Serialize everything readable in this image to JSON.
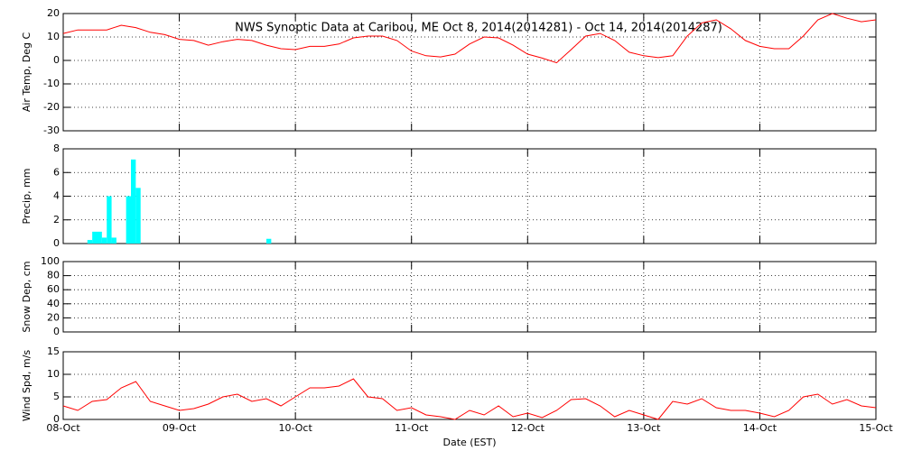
{
  "chart_data": [
    {
      "type": "line",
      "title": "NWS Synoptic Data at Caribou, ME   Oct  8, 2014(2014281) - Oct 14, 2014(2014287)",
      "y_label": "Air Temp, Deg C",
      "grid": true,
      "x": [
        0,
        3,
        6,
        9,
        12,
        15,
        18,
        21,
        24,
        27,
        30,
        33,
        36,
        39,
        42,
        45,
        48,
        51,
        54,
        57,
        60,
        63,
        66,
        69,
        72,
        75,
        78,
        81,
        84,
        87,
        90,
        93,
        96,
        99,
        102,
        105,
        108,
        111,
        114,
        117,
        120,
        123,
        126,
        129,
        132,
        135,
        138,
        141,
        144,
        147,
        150,
        153,
        156,
        159,
        162,
        165,
        168
      ],
      "series": [
        {
          "name": "Air Temp",
          "color": "#ff0000",
          "values": [
            11.5,
            13,
            13,
            13,
            15,
            14,
            12,
            11,
            9,
            8.5,
            6.5,
            8,
            9,
            8.5,
            6.5,
            5,
            4.6,
            6,
            6,
            7,
            9.6,
            10.4,
            10.4,
            8.5,
            4,
            2,
            1.5,
            2.7,
            7,
            10,
            9.6,
            6.5,
            2.7,
            1,
            -1,
            4.6,
            10.4,
            11.5,
            8.5,
            3.5,
            2,
            1.2,
            2,
            10.4,
            16,
            17.3,
            13.5,
            8.5,
            6,
            5,
            5,
            10.4,
            17.3,
            20,
            18,
            16.5,
            17.3
          ]
        }
      ],
      "xlim": [
        0,
        168
      ],
      "xticks": [
        0,
        24,
        48,
        72,
        96,
        120,
        144,
        168
      ],
      "ylim": [
        -30,
        20
      ],
      "yticks": [
        -30,
        -20,
        -10,
        0,
        10,
        20
      ]
    },
    {
      "type": "bar",
      "y_label": "Precip, mm",
      "grid": true,
      "x": [
        5,
        6,
        7,
        8,
        9,
        10,
        13,
        14,
        15,
        42
      ],
      "series": [
        {
          "name": "Precip",
          "color": "#00ffff",
          "values": [
            0.3,
            1,
            1,
            0.5,
            4,
            0.5,
            4,
            7.1,
            4.7,
            0.4
          ]
        }
      ],
      "xlim": [
        0,
        168
      ],
      "xticks": [
        0,
        24,
        48,
        72,
        96,
        120,
        144,
        168
      ],
      "ylim": [
        0,
        8
      ],
      "yticks": [
        0,
        2,
        4,
        6,
        8
      ]
    },
    {
      "type": "line",
      "y_label": "Snow Dep, cm",
      "grid": true,
      "x": [],
      "series": [
        {
          "name": "Snow Depth",
          "color": "#ff0000",
          "values": []
        }
      ],
      "xlim": [
        0,
        168
      ],
      "xticks": [
        0,
        24,
        48,
        72,
        96,
        120,
        144,
        168
      ],
      "ylim": [
        0,
        100
      ],
      "yticks": [
        0,
        20,
        40,
        60,
        80,
        100
      ]
    },
    {
      "type": "line",
      "y_label": "Wind Spd, m/s",
      "x_label": "Date (EST)",
      "grid": true,
      "x": [
        0,
        3,
        6,
        9,
        12,
        15,
        18,
        21,
        24,
        27,
        30,
        33,
        36,
        39,
        42,
        45,
        48,
        51,
        54,
        57,
        60,
        63,
        66,
        69,
        72,
        75,
        78,
        81,
        84,
        87,
        90,
        93,
        96,
        99,
        102,
        105,
        108,
        111,
        114,
        117,
        120,
        123,
        126,
        129,
        132,
        135,
        138,
        141,
        144,
        147,
        150,
        153,
        156,
        159,
        162,
        165,
        168
      ],
      "series": [
        {
          "name": "Wind Speed",
          "color": "#ff0000",
          "values": [
            3,
            2,
            4,
            4.4,
            7,
            8.4,
            4,
            3,
            2,
            2.4,
            3.4,
            5,
            5.6,
            4,
            4.6,
            3,
            5,
            7,
            7,
            7.4,
            9,
            5,
            4.6,
            2,
            2.6,
            1,
            0.6,
            0,
            2,
            1,
            3,
            0.6,
            1.4,
            0.4,
            2,
            4.4,
            4.6,
            3,
            0.6,
            2,
            1,
            0,
            4,
            3.4,
            4.6,
            2.6,
            2,
            2,
            1.4,
            0.6,
            2,
            5,
            5.6,
            3.4,
            4.4,
            3,
            2.6
          ]
        }
      ],
      "xlim": [
        0,
        168
      ],
      "xticks": [
        {
          "value": 0,
          "label": "08-Oct"
        },
        {
          "value": 24,
          "label": "09-Oct"
        },
        {
          "value": 48,
          "label": "10-Oct"
        },
        {
          "value": 72,
          "label": "11-Oct"
        },
        {
          "value": 96,
          "label": "12-Oct"
        },
        {
          "value": 120,
          "label": "13-Oct"
        },
        {
          "value": 144,
          "label": "14-Oct"
        },
        {
          "value": 168,
          "label": "15-Oct"
        }
      ],
      "ylim": [
        0,
        15
      ],
      "yticks": [
        0,
        5,
        10,
        15
      ]
    }
  ]
}
